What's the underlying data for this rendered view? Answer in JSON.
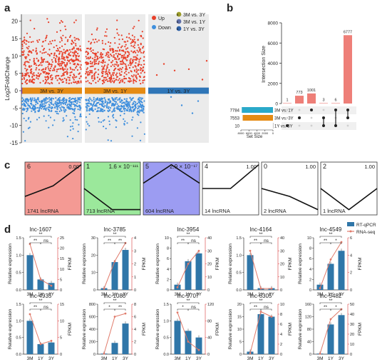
{
  "panels": {
    "a": "a",
    "b": "b",
    "c": "c",
    "d": "d"
  },
  "colors": {
    "up": "#e8402a",
    "down": "#3f8fdd",
    "c1": "#9c9c2a",
    "c2": "#5f6fa8",
    "c3": "#2f62a8",
    "bar_orange": "#e58b14",
    "bar_teal": "#2aa9c9",
    "bar_pink": "#ee7f78",
    "qpcr": "#2f76a8",
    "rnaseq": "#e07a6a",
    "cluster_red": "#f49a94",
    "cluster_green": "#9be89b",
    "cluster_blue": "#9c9cf2"
  },
  "chart_data": [
    {
      "type": "scatter",
      "id": "a",
      "ylabel": "Log2FoldChange",
      "ylim": [
        -15,
        22
      ],
      "yticks": [
        "-15",
        "-10",
        "-5",
        "0",
        "5",
        "10",
        "15",
        "20"
      ],
      "groups": [
        "3M vs. 3Y",
        "3M vs. 1Y",
        "1Y vs. 3Y"
      ],
      "legend_left": [
        "Up",
        "Down"
      ],
      "legend_right": [
        "3M vs. 3Y",
        "3M vs. 1Y",
        "1Y vs. 3Y"
      ]
    },
    {
      "type": "bar",
      "id": "b",
      "ylabel": "Intersection Size",
      "ylim": [
        0,
        8000
      ],
      "yticks": [
        "0",
        "2000",
        "4000",
        "6000",
        "8000"
      ],
      "values": [
        1,
        773,
        1001,
        3,
        6,
        6777
      ],
      "value_labels": [
        "1",
        "773",
        "1001",
        "3",
        "6",
        "6777"
      ],
      "set_names": [
        "3M vs. 1Y",
        "3M vs. 3Y",
        "1Y vs. 3Y"
      ],
      "set_size_labels": [
        "7784",
        "7553",
        "10"
      ],
      "set_sizes": [
        7784,
        7553,
        10
      ],
      "set_xlabel": "Set Size",
      "set_ticks": [
        "8000",
        "6000",
        "4000",
        "2000",
        "0"
      ]
    },
    {
      "type": "line",
      "id": "c",
      "clusters": [
        {
          "id": "6",
          "p": "0.00",
          "count": "1741 lncRNA"
        },
        {
          "id": "1",
          "p": "1.6 × 10⁻¹¹¹",
          "count": "713 lncRNA"
        },
        {
          "id": "5",
          "p": "2.9 × 10⁻¹⁷",
          "count": "604 lncRNA"
        },
        {
          "id": "4",
          "p": "1.00",
          "count": "14 lncRNA"
        },
        {
          "id": "0",
          "p": "1.00",
          "count": "2 lncRNA"
        },
        {
          "id": "2",
          "p": "1.00",
          "count": "1 lncRNA"
        }
      ]
    },
    {
      "type": "bar",
      "id": "d",
      "categories": [
        "3M",
        "1Y",
        "3Y"
      ],
      "ylabel_left": "Relative expression",
      "ylabel_right": "FPKM",
      "legend": [
        "RT-qPCR",
        "RNA-seq"
      ],
      "genes": [
        {
          "name": "lnc-1607",
          "lticks": [
            "0.0",
            "0.5",
            "1.0",
            "1.5"
          ],
          "lmax": 1.5,
          "rticks": [
            "0",
            "5",
            "10",
            "15",
            "20",
            "25"
          ],
          "rmax": 25,
          "bars": [
            1.0,
            0.3,
            0.2
          ],
          "line": [
            22,
            5,
            2
          ],
          "sig": [
            "**",
            "**",
            "ns"
          ]
        },
        {
          "name": "lnc-3785",
          "lticks": [
            "0",
            "10",
            "20",
            "30"
          ],
          "lmax": 30,
          "rticks": [
            "0",
            "1",
            "2",
            "3",
            "4"
          ],
          "rmax": 4,
          "bars": [
            1,
            16,
            23
          ],
          "line": [
            0.1,
            2.2,
            3.6
          ],
          "sig": [
            "**",
            "**",
            "**"
          ]
        },
        {
          "name": "lnc-3954",
          "lticks": [
            "0",
            "2",
            "4",
            "6",
            "8",
            "10"
          ],
          "lmax": 10,
          "rticks": [
            "0",
            "10",
            "20",
            "30",
            "40"
          ],
          "rmax": 40,
          "bars": [
            1.0,
            5.5,
            7.0
          ],
          "line": [
            2,
            20,
            30
          ],
          "sig": [
            "**",
            "**",
            "ns"
          ]
        },
        {
          "name": "lnc-4164",
          "lticks": [
            "0.0",
            "0.5",
            "1.0",
            "1.5"
          ],
          "lmax": 1.5,
          "rticks": [
            "0",
            "10",
            "20",
            "30",
            "40"
          ],
          "rmax": 40,
          "bars": [
            1.0,
            0.05,
            0.05
          ],
          "line": [
            30,
            1,
            1
          ],
          "sig": [
            "**",
            "**",
            "ns"
          ]
        },
        {
          "name": "lnc-4549",
          "lticks": [
            "0",
            "2",
            "4",
            "6",
            "8",
            "10"
          ],
          "lmax": 10,
          "rticks": [
            "0",
            "2",
            "4",
            "6"
          ],
          "rmax": 6,
          "bars": [
            1.0,
            5.0,
            7.5
          ],
          "line": [
            0.2,
            3.5,
            5.5
          ],
          "sig": [
            "**",
            "**",
            "*"
          ]
        },
        {
          "name": "lnc-4935",
          "lticks": [
            "0.0",
            "0.5",
            "1.0",
            "1.5"
          ],
          "lmax": 1.5,
          "rticks": [
            "0",
            "5",
            "10",
            "15"
          ],
          "rmax": 15,
          "bars": [
            1.0,
            0.3,
            0.35
          ],
          "line": [
            12,
            3,
            4
          ],
          "sig": [
            "**",
            "**",
            "ns"
          ]
        },
        {
          "name": "lnc-1080",
          "lticks": [
            "0",
            "200",
            "400",
            "600",
            "800"
          ],
          "lmax": 800,
          "rticks": [
            "0",
            "2",
            "4",
            "6",
            "8"
          ],
          "rmax": 8,
          "bars": [
            1,
            180,
            490
          ],
          "line": [
            0.1,
            6,
            6.5
          ],
          "sig": [
            "*",
            "**",
            "**"
          ]
        },
        {
          "name": "lnc-9707",
          "lticks": [
            "0.0",
            "0.5",
            "1.0",
            "1.5"
          ],
          "lmax": 1.5,
          "rticks": [
            "0",
            "40",
            "80",
            "120"
          ],
          "rmax": 120,
          "bars": [
            1.0,
            0.7,
            0.5
          ],
          "line": [
            100,
            30,
            10
          ],
          "sig": [
            "*",
            "**",
            "ns"
          ]
        },
        {
          "name": "lnc-6305",
          "lticks": [
            "0",
            "5",
            "10",
            "15",
            "20"
          ],
          "lmax": 20,
          "rticks": [
            "0",
            "2",
            "4",
            "6",
            "8",
            "10"
          ],
          "rmax": 10,
          "bars": [
            1,
            16,
            15
          ],
          "line": [
            0.2,
            8.5,
            7.5
          ],
          "sig": [
            "**",
            "**",
            "ns"
          ]
        },
        {
          "name": "lnc-5482",
          "lticks": [
            "0",
            "40",
            "80",
            "120",
            "160"
          ],
          "lmax": 160,
          "rticks": [
            "0",
            "10",
            "20",
            "30",
            "40",
            "50"
          ],
          "rmax": 50,
          "bars": [
            1,
            95,
            125
          ],
          "line": [
            0.5,
            35,
            45
          ],
          "sig": [
            "**",
            "**",
            "*"
          ]
        }
      ]
    }
  ]
}
